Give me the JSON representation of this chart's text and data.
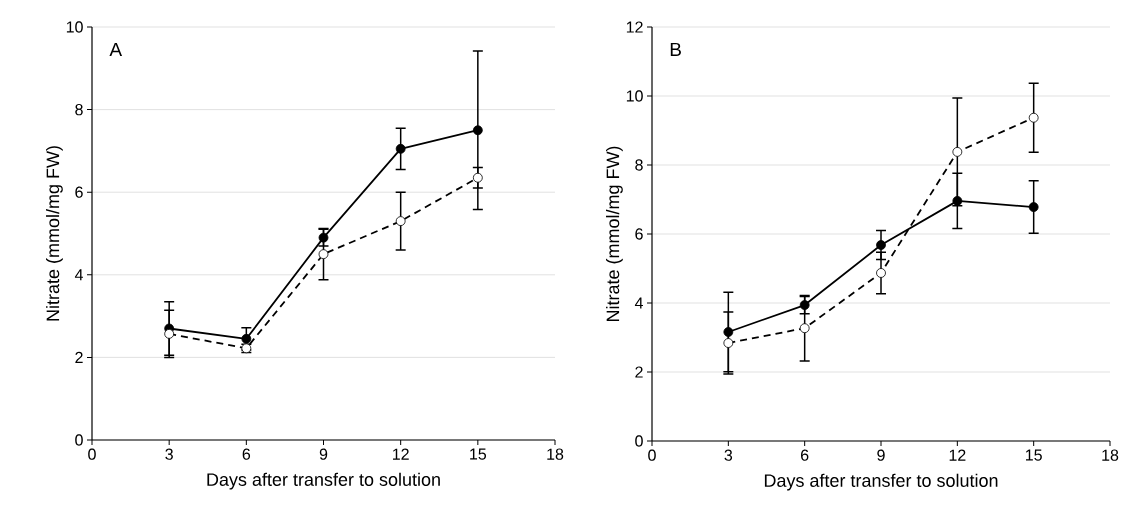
{
  "chart_data": [
    {
      "type": "line",
      "xlabel": "Days after transfer to solution",
      "ylabel": "Nitrate (mmol/mg FW)",
      "annotations": [
        "A"
      ],
      "x": [
        3,
        6,
        9,
        12,
        15
      ],
      "xlim": [
        0,
        18
      ],
      "xticks": [
        0,
        3,
        6,
        9,
        12,
        15,
        18
      ],
      "ylim": [
        0,
        10
      ],
      "yticks": [
        0,
        2,
        4,
        6,
        8,
        10
      ],
      "grid": "y",
      "marker": "circle",
      "series": [
        {
          "color": "#000000",
          "line_style": "solid",
          "values": [
            2.7,
            2.45,
            4.9,
            7.05,
            7.5
          ],
          "errors": [
            0.65,
            0.27,
            0.2,
            0.5,
            1.92
          ]
        },
        {
          "color": "#000000",
          "line_style": "dashed",
          "values": [
            2.57,
            2.22,
            4.5,
            5.3,
            6.35
          ],
          "errors": [
            0.57,
            0.1,
            0.62,
            0.7,
            0.25
          ]
        }
      ]
    },
    {
      "type": "line",
      "xlabel": "Days after transfer to solution",
      "ylabel": "Nitrate (mmol/mg FW)",
      "annotations": [
        "B"
      ],
      "x": [
        3,
        6,
        9,
        12,
        15
      ],
      "xlim": [
        0,
        18
      ],
      "xticks": [
        0,
        3,
        6,
        9,
        12,
        15,
        18
      ],
      "ylim": [
        0,
        12
      ],
      "yticks": [
        0,
        2,
        4,
        6,
        8,
        10,
        12
      ],
      "grid": "y",
      "marker": "circle",
      "series": [
        {
          "color": "#000000",
          "line_style": "solid",
          "values": [
            3.16,
            3.94,
            5.68,
            6.96,
            6.78
          ],
          "errors": [
            1.15,
            0.25,
            0.42,
            0.8,
            0.76
          ]
        },
        {
          "color": "#000000",
          "line_style": "dashed",
          "values": [
            2.84,
            3.27,
            4.87,
            8.38,
            9.37
          ],
          "errors": [
            0.9,
            0.95,
            0.6,
            1.56,
            1.0
          ]
        }
      ]
    }
  ]
}
